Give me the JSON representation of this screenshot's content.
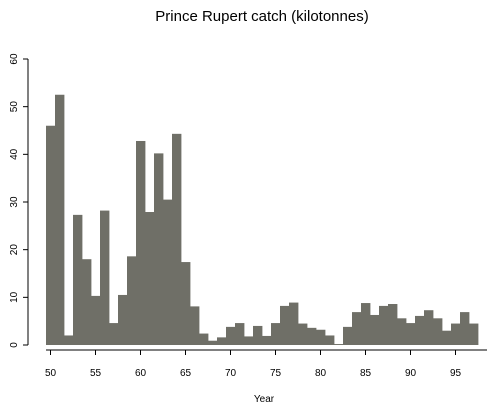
{
  "chart_data": {
    "type": "bar",
    "title": "Prince Rupert catch (kilotonnes)",
    "xlabel": "Year",
    "ylabel": "",
    "x": [
      50,
      51,
      52,
      53,
      54,
      55,
      56,
      57,
      58,
      59,
      60,
      61,
      62,
      63,
      64,
      65,
      66,
      67,
      68,
      69,
      70,
      71,
      72,
      73,
      74,
      75,
      76,
      77,
      78,
      79,
      80,
      81,
      82,
      83,
      84,
      85,
      86,
      87,
      88,
      89,
      90,
      91,
      92,
      93,
      94,
      95,
      96,
      97
    ],
    "values": [
      46,
      52.5,
      2,
      27.3,
      18,
      10.3,
      28.2,
      4.6,
      10.5,
      18.6,
      42.8,
      27.9,
      40.2,
      30.5,
      44.3,
      17.4,
      8.1,
      2.4,
      0.9,
      1.6,
      3.8,
      4.6,
      1.8,
      4,
      1.9,
      4.6,
      8.2,
      8.9,
      4.5,
      3.6,
      3.2,
      2,
      0.2,
      3.8,
      6.9,
      8.8,
      6.3,
      8.2,
      8.6,
      5.6,
      4.6,
      6.1,
      7.3,
      5.6,
      3,
      4.5,
      6.9,
      4.5
    ],
    "xticks": [
      "50",
      "55",
      "60",
      "65",
      "70",
      "75",
      "80",
      "85",
      "90",
      "95"
    ],
    "yticks": [
      "0",
      "10",
      "20",
      "30",
      "40",
      "50",
      "60"
    ],
    "xlim": [
      49.5,
      98.5
    ],
    "ylim": [
      0,
      60
    ],
    "grid": false,
    "colors": {
      "bar": "#6f6f67",
      "axis": "#000000",
      "background": "#ffffff"
    }
  }
}
